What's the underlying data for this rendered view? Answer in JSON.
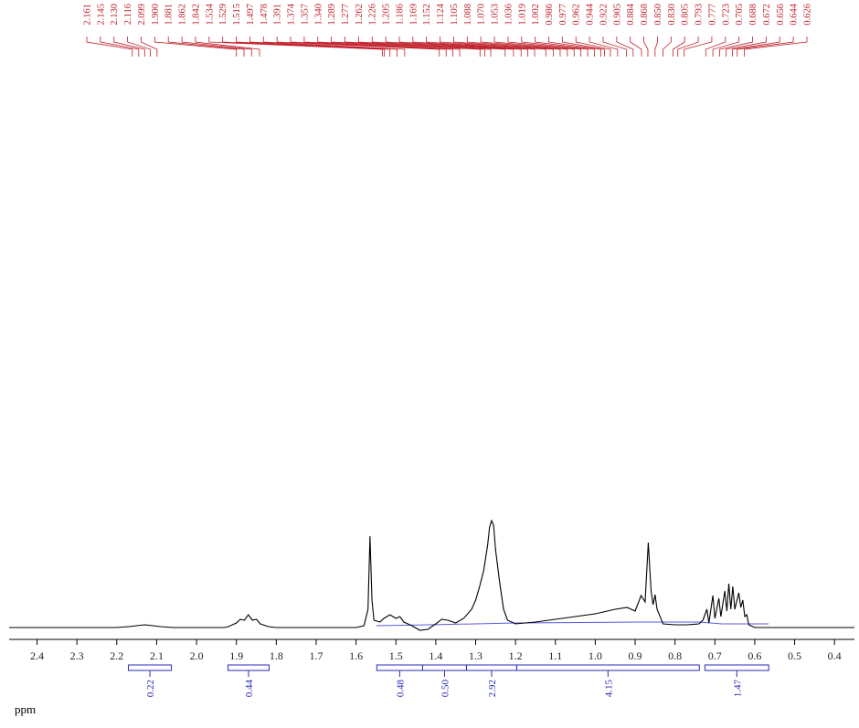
{
  "chart_data": {
    "type": "nmr",
    "x_label": "ppm",
    "xlim": [
      2.47,
      0.35
    ],
    "xticks": [
      2.4,
      2.3,
      2.2,
      2.1,
      {
        "value": 2.0,
        "label": "2.0"
      },
      1.9,
      1.8,
      1.7,
      1.6,
      1.5,
      1.4,
      1.3,
      1.2,
      1.1,
      {
        "value": 1.0,
        "label": "1.0"
      },
      0.9,
      0.8,
      0.7,
      0.6,
      0.5,
      0.4
    ],
    "ylim": [
      0,
      600
    ],
    "peaks": [
      2.161,
      2.145,
      {
        "value": 2.13,
        "label": "2.130"
      },
      2.116,
      2.099,
      {
        "value": 1.9,
        "label": "1.900"
      },
      1.881,
      1.862,
      1.842,
      1.534,
      1.529,
      1.515,
      1.497,
      1.478,
      1.391,
      1.374,
      1.357,
      {
        "value": 1.34,
        "label": "1.340"
      },
      1.289,
      1.277,
      1.262,
      1.226,
      1.205,
      1.186,
      1.169,
      1.152,
      1.124,
      1.105,
      1.088,
      {
        "value": 1.07,
        "label": "1.070"
      },
      1.053,
      1.036,
      1.019,
      1.002,
      0.986,
      0.977,
      0.962,
      0.944,
      0.922,
      0.905,
      0.884,
      0.868,
      {
        "value": 0.85,
        "label": "0.850"
      },
      {
        "value": 0.83,
        "label": "0.830"
      },
      0.805,
      0.793,
      0.777,
      0.723,
      0.705,
      0.688,
      0.672,
      0.656,
      0.644,
      0.626
    ],
    "peak_color": "#c0202a",
    "integrals": [
      {
        "from": 2.171,
        "to": 2.063,
        "value": 0.22
      },
      {
        "from": 1.921,
        "to": 1.818,
        "value": 0.44
      },
      {
        "from": 1.548,
        "to": 1.433,
        "value": 0.48
      },
      {
        "from": 1.433,
        "to": 1.323,
        "value": {
          "value": 0.5,
          "label": "0.50"
        }
      },
      {
        "from": 1.323,
        "to": 1.197,
        "value": 2.92
      },
      {
        "from": 1.197,
        "to": 0.739,
        "value": 4.15
      },
      {
        "from": 0.725,
        "to": 0.565,
        "value": 1.47
      }
    ],
    "integral_color": "#2a2ab8",
    "series": [
      {
        "color": "#000000",
        "x": [
          2.47,
          2.2,
          2.17,
          2.15,
          2.13,
          2.11,
          2.09,
          2.06,
          1.93,
          1.92,
          1.9,
          1.89,
          1.88,
          1.87,
          1.86,
          1.85,
          1.84,
          1.82,
          1.8,
          1.6,
          1.58,
          1.57,
          1.565,
          1.56,
          1.555,
          1.54,
          1.53,
          1.515,
          1.5,
          1.49,
          1.48,
          1.46,
          1.44,
          1.42,
          1.4,
          1.385,
          1.37,
          1.35,
          1.33,
          1.31,
          1.3,
          1.29,
          1.28,
          1.27,
          1.265,
          1.26,
          1.255,
          1.25,
          1.24,
          1.23,
          1.22,
          1.2,
          1.15,
          1.1,
          1.05,
          1.0,
          0.95,
          0.92,
          0.9,
          0.885,
          0.875,
          0.867,
          0.86,
          0.855,
          0.85,
          0.845,
          0.83,
          0.8,
          0.77,
          0.74,
          0.73,
          0.72,
          0.715,
          0.705,
          0.7,
          0.69,
          0.685,
          0.675,
          0.67,
          0.665,
          0.66,
          0.655,
          0.65,
          0.64,
          0.635,
          0.63,
          0.625,
          0.62,
          0.615,
          0.6,
          0.35
        ],
        "values": [
          0,
          0,
          1,
          2,
          3,
          2,
          1,
          0,
          0,
          1,
          5,
          9,
          8,
          14,
          8,
          9,
          4,
          1,
          0,
          0,
          2,
          20,
          100,
          30,
          8,
          6,
          10,
          14,
          10,
          12,
          6,
          2,
          -3,
          -2,
          4,
          9,
          8,
          5,
          10,
          20,
          30,
          45,
          62,
          90,
          110,
          117,
          112,
          85,
          50,
          20,
          8,
          4,
          6,
          9,
          12,
          15,
          20,
          22,
          18,
          35,
          28,
          93,
          40,
          25,
          36,
          20,
          4,
          3,
          3,
          4,
          8,
          20,
          5,
          35,
          10,
          32,
          12,
          40,
          18,
          48,
          20,
          45,
          20,
          38,
          22,
          30,
          12,
          14,
          3,
          0,
          0
        ]
      }
    ]
  }
}
